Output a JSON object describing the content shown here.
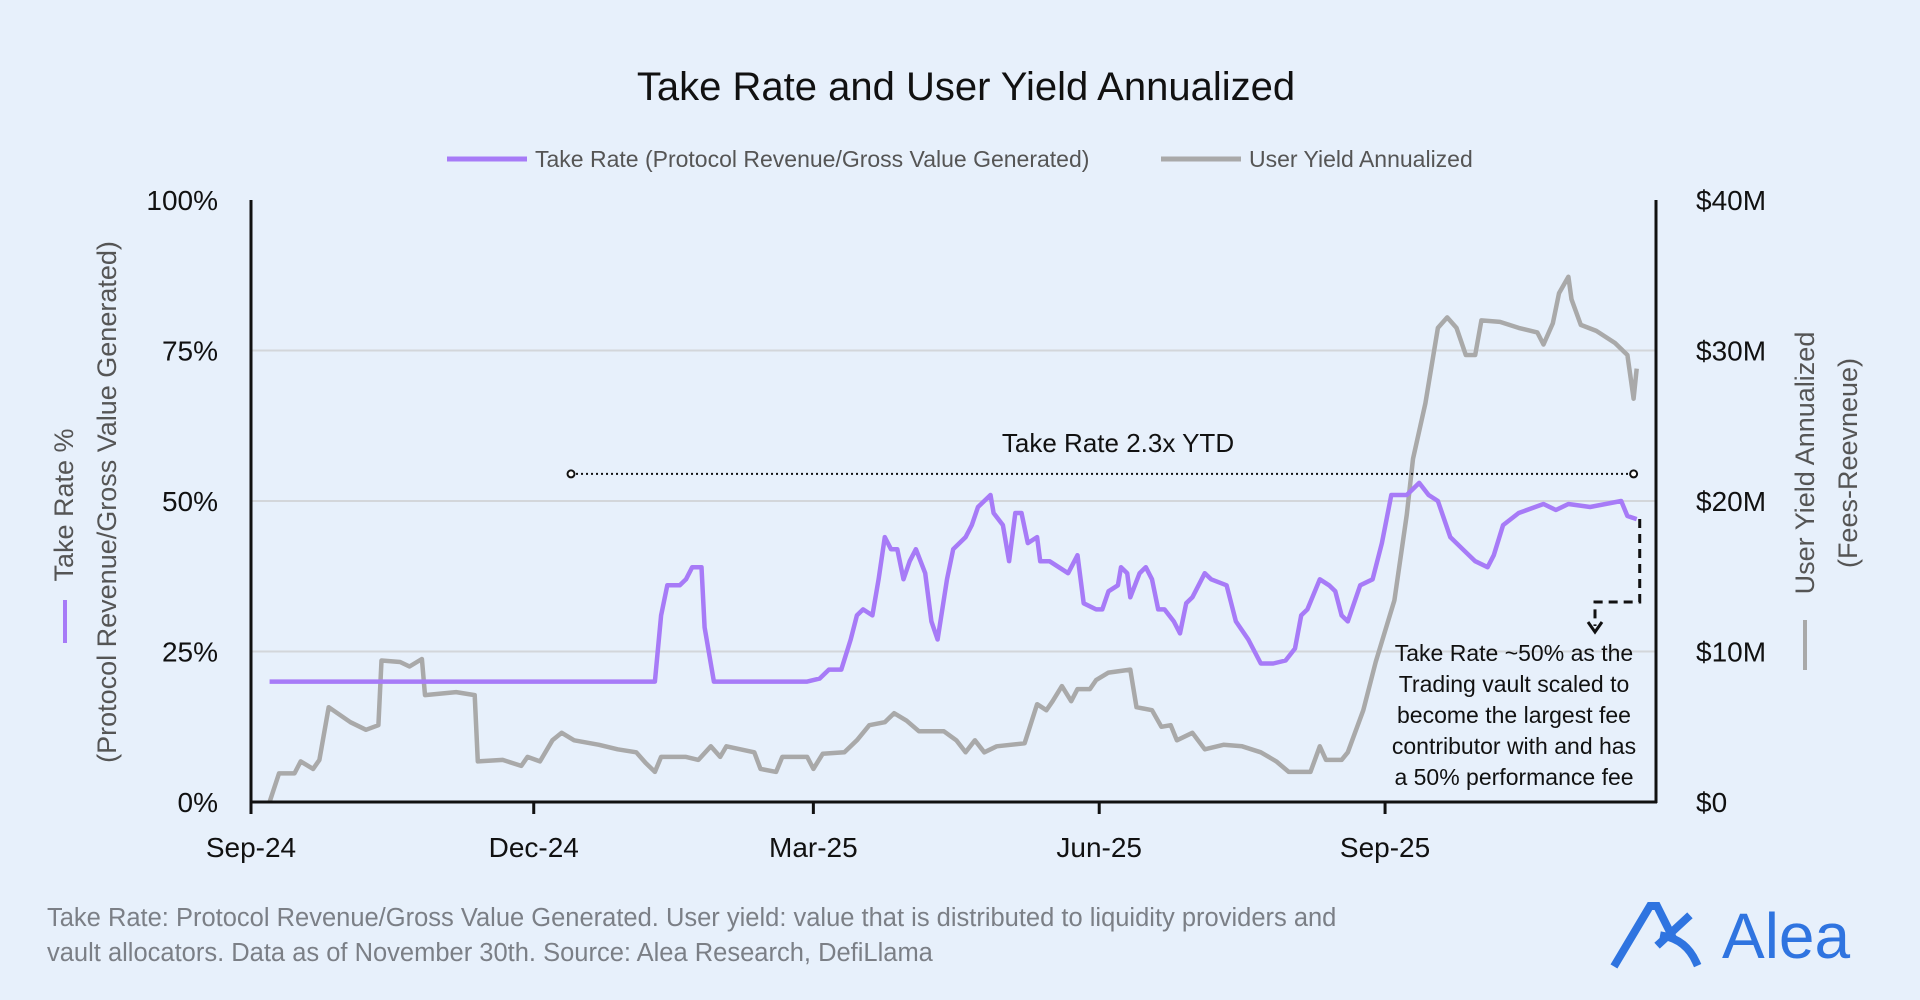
{
  "chart_data": {
    "type": "line",
    "title": "Take Rate and User Yield Annualized",
    "legend_placement": "top",
    "grid": true,
    "x_ticks": [
      {
        "date": "2024-09-01",
        "label": "Sep-24"
      },
      {
        "date": "2024-12-01",
        "label": "Dec-24"
      },
      {
        "date": "2025-03-01",
        "label": "Mar-25"
      },
      {
        "date": "2025-06-01",
        "label": "Jun-25"
      },
      {
        "date": "2025-09-01",
        "label": "Sep-25"
      }
    ],
    "x_range": [
      "2024-09-01",
      "2025-11-30"
    ],
    "y_left": {
      "label_line1": "Take Rate %",
      "label_line2": "(Protocol Revenue/Gross Value Generated)",
      "range": [
        0,
        100
      ],
      "ticks": [
        {
          "v": 0,
          "label": "0%"
        },
        {
          "v": 25,
          "label": "25%"
        },
        {
          "v": 50,
          "label": "50%"
        },
        {
          "v": 75,
          "label": "75%"
        },
        {
          "v": 100,
          "label": "100%"
        }
      ]
    },
    "y_right": {
      "label_line1": "User Yield Annualized",
      "label_line2": "(Fees-Reevneue)",
      "range": [
        0,
        40
      ],
      "ticks": [
        {
          "v": 0,
          "label": "$0"
        },
        {
          "v": 10,
          "label": "$10M"
        },
        {
          "v": 20,
          "label": "$20M"
        },
        {
          "v": 30,
          "label": "$30M"
        },
        {
          "v": 40,
          "label": "$40M"
        }
      ]
    },
    "series": [
      {
        "name": "Take Rate (Protocol Revenue/Gross Value Generated)",
        "axis": "left",
        "color": "#a77bf7",
        "points": [
          [
            "2024-09-07",
            20
          ],
          [
            "2025-01-09",
            20
          ],
          [
            "2025-01-11",
            31
          ],
          [
            "2025-01-13",
            36
          ],
          [
            "2025-01-17",
            36
          ],
          [
            "2025-01-19",
            37
          ],
          [
            "2025-01-21",
            39
          ],
          [
            "2025-01-24",
            39
          ],
          [
            "2025-01-25",
            29
          ],
          [
            "2025-01-28",
            20
          ],
          [
            "2025-02-27",
            20
          ],
          [
            "2025-03-03",
            20.5
          ],
          [
            "2025-03-06",
            22
          ],
          [
            "2025-03-10",
            22
          ],
          [
            "2025-03-13",
            27
          ],
          [
            "2025-03-15",
            31
          ],
          [
            "2025-03-17",
            32
          ],
          [
            "2025-03-20",
            31
          ],
          [
            "2025-03-22",
            37
          ],
          [
            "2025-03-24",
            44
          ],
          [
            "2025-03-26",
            42
          ],
          [
            "2025-03-28",
            42
          ],
          [
            "2025-03-30",
            37
          ],
          [
            "2025-04-01",
            40
          ],
          [
            "2025-04-03",
            42
          ],
          [
            "2025-04-06",
            38
          ],
          [
            "2025-04-08",
            30
          ],
          [
            "2025-04-10",
            27
          ],
          [
            "2025-04-13",
            37
          ],
          [
            "2025-04-15",
            42
          ],
          [
            "2025-04-19",
            44
          ],
          [
            "2025-04-21",
            46
          ],
          [
            "2025-04-23",
            49
          ],
          [
            "2025-04-27",
            51
          ],
          [
            "2025-04-28",
            48
          ],
          [
            "2025-05-01",
            46
          ],
          [
            "2025-05-03",
            40
          ],
          [
            "2025-05-05",
            48
          ],
          [
            "2025-05-07",
            48
          ],
          [
            "2025-05-09",
            43
          ],
          [
            "2025-05-12",
            44
          ],
          [
            "2025-05-13",
            40
          ],
          [
            "2025-05-16",
            40
          ],
          [
            "2025-05-19",
            39
          ],
          [
            "2025-05-22",
            38
          ],
          [
            "2025-05-25",
            41
          ],
          [
            "2025-05-27",
            33
          ],
          [
            "2025-05-31",
            32
          ],
          [
            "2025-06-02",
            32
          ],
          [
            "2025-06-04",
            35
          ],
          [
            "2025-06-07",
            36
          ],
          [
            "2025-06-08",
            39
          ],
          [
            "2025-06-10",
            38
          ],
          [
            "2025-06-11",
            34
          ],
          [
            "2025-06-14",
            38
          ],
          [
            "2025-06-16",
            39
          ],
          [
            "2025-06-18",
            37
          ],
          [
            "2025-06-20",
            32
          ],
          [
            "2025-06-22",
            32
          ],
          [
            "2025-06-25",
            30
          ],
          [
            "2025-06-27",
            28
          ],
          [
            "2025-06-29",
            33
          ],
          [
            "2025-07-01",
            34
          ],
          [
            "2025-07-05",
            38
          ],
          [
            "2025-07-07",
            37
          ],
          [
            "2025-07-12",
            36
          ],
          [
            "2025-07-15",
            30
          ],
          [
            "2025-07-19",
            27
          ],
          [
            "2025-07-23",
            23
          ],
          [
            "2025-07-27",
            23
          ],
          [
            "2025-07-31",
            23.5
          ],
          [
            "2025-08-03",
            25.5
          ],
          [
            "2025-08-05",
            31
          ],
          [
            "2025-08-07",
            32
          ],
          [
            "2025-08-11",
            37
          ],
          [
            "2025-08-14",
            36
          ],
          [
            "2025-08-16",
            35
          ],
          [
            "2025-08-18",
            31
          ],
          [
            "2025-08-20",
            30
          ],
          [
            "2025-08-24",
            36
          ],
          [
            "2025-08-28",
            37
          ],
          [
            "2025-08-29",
            39
          ],
          [
            "2025-08-31",
            43
          ],
          [
            "2025-09-03",
            51
          ],
          [
            "2025-09-08",
            51
          ],
          [
            "2025-09-12",
            53
          ],
          [
            "2025-09-15",
            51
          ],
          [
            "2025-09-18",
            50
          ],
          [
            "2025-09-22",
            44
          ],
          [
            "2025-09-26",
            42
          ],
          [
            "2025-09-30",
            40
          ],
          [
            "2025-10-04",
            39
          ],
          [
            "2025-10-06",
            41
          ],
          [
            "2025-10-09",
            46
          ],
          [
            "2025-10-14",
            48
          ],
          [
            "2025-10-22",
            49.5
          ],
          [
            "2025-10-26",
            48.5
          ],
          [
            "2025-10-30",
            49.5
          ],
          [
            "2025-11-06",
            49
          ],
          [
            "2025-11-16",
            50
          ],
          [
            "2025-11-18",
            47.5
          ],
          [
            "2025-11-21",
            47
          ]
        ]
      },
      {
        "name": "User Yield Annualized",
        "axis": "right",
        "color": "#a9a9a9",
        "points": [
          [
            "2024-09-07",
            0
          ],
          [
            "2024-09-10",
            1.9
          ],
          [
            "2024-09-15",
            1.9
          ],
          [
            "2024-09-17",
            2.7
          ],
          [
            "2024-09-21",
            2.2
          ],
          [
            "2024-09-23",
            2.8
          ],
          [
            "2024-09-26",
            6.3
          ],
          [
            "2024-10-03",
            5.3
          ],
          [
            "2024-10-08",
            4.8
          ],
          [
            "2024-10-12",
            5.1
          ],
          [
            "2024-10-13",
            9.4
          ],
          [
            "2024-10-19",
            9.3
          ],
          [
            "2024-10-22",
            9.0
          ],
          [
            "2024-10-26",
            9.5
          ],
          [
            "2024-10-27",
            7.1
          ],
          [
            "2024-11-06",
            7.3
          ],
          [
            "2024-11-12",
            7.1
          ],
          [
            "2024-11-13",
            2.7
          ],
          [
            "2024-11-21",
            2.8
          ],
          [
            "2024-11-27",
            2.4
          ],
          [
            "2024-11-29",
            3.0
          ],
          [
            "2024-12-03",
            2.7
          ],
          [
            "2024-12-07",
            4.1
          ],
          [
            "2024-12-10",
            4.6
          ],
          [
            "2024-12-14",
            4.1
          ],
          [
            "2024-12-22",
            3.8
          ],
          [
            "2024-12-28",
            3.5
          ],
          [
            "2025-01-03",
            3.3
          ],
          [
            "2025-01-06",
            2.6
          ],
          [
            "2025-01-09",
            2.0
          ],
          [
            "2025-01-11",
            3.0
          ],
          [
            "2025-01-19",
            3.0
          ],
          [
            "2025-01-23",
            2.8
          ],
          [
            "2025-01-27",
            3.7
          ],
          [
            "2025-01-30",
            3.0
          ],
          [
            "2025-02-01",
            3.7
          ],
          [
            "2025-02-10",
            3.3
          ],
          [
            "2025-02-12",
            2.2
          ],
          [
            "2025-02-17",
            2.0
          ],
          [
            "2025-02-19",
            3.0
          ],
          [
            "2025-02-27",
            3.0
          ],
          [
            "2025-03-01",
            2.2
          ],
          [
            "2025-03-04",
            3.2
          ],
          [
            "2025-03-11",
            3.3
          ],
          [
            "2025-03-15",
            4.1
          ],
          [
            "2025-03-19",
            5.1
          ],
          [
            "2025-03-24",
            5.3
          ],
          [
            "2025-03-27",
            5.9
          ],
          [
            "2025-03-31",
            5.4
          ],
          [
            "2025-04-04",
            4.7
          ],
          [
            "2025-04-12",
            4.7
          ],
          [
            "2025-04-16",
            4.1
          ],
          [
            "2025-04-19",
            3.3
          ],
          [
            "2025-04-22",
            4.1
          ],
          [
            "2025-04-25",
            3.3
          ],
          [
            "2025-04-29",
            3.7
          ],
          [
            "2025-05-08",
            3.9
          ],
          [
            "2025-05-12",
            6.5
          ],
          [
            "2025-05-15",
            6.1
          ],
          [
            "2025-05-17",
            6.7
          ],
          [
            "2025-05-20",
            7.7
          ],
          [
            "2025-05-23",
            6.7
          ],
          [
            "2025-05-25",
            7.5
          ],
          [
            "2025-05-29",
            7.5
          ],
          [
            "2025-05-31",
            8.1
          ],
          [
            "2025-06-04",
            8.6
          ],
          [
            "2025-06-11",
            8.8
          ],
          [
            "2025-06-13",
            6.3
          ],
          [
            "2025-06-18",
            6.1
          ],
          [
            "2025-06-21",
            5.0
          ],
          [
            "2025-06-24",
            5.1
          ],
          [
            "2025-06-26",
            4.1
          ],
          [
            "2025-07-01",
            4.6
          ],
          [
            "2025-07-05",
            3.5
          ],
          [
            "2025-07-11",
            3.8
          ],
          [
            "2025-07-17",
            3.7
          ],
          [
            "2025-07-23",
            3.3
          ],
          [
            "2025-07-28",
            2.7
          ],
          [
            "2025-08-01",
            2.0
          ],
          [
            "2025-08-08",
            2.0
          ],
          [
            "2025-08-11",
            3.7
          ],
          [
            "2025-08-13",
            2.8
          ],
          [
            "2025-08-18",
            2.8
          ],
          [
            "2025-08-20",
            3.3
          ],
          [
            "2025-08-25",
            6.1
          ],
          [
            "2025-08-29",
            9.3
          ],
          [
            "2025-09-04",
            13.4
          ],
          [
            "2025-09-08",
            19.1
          ],
          [
            "2025-09-10",
            22.8
          ],
          [
            "2025-09-14",
            26.5
          ],
          [
            "2025-09-18",
            31.5
          ],
          [
            "2025-09-21",
            32.2
          ],
          [
            "2025-09-24",
            31.5
          ],
          [
            "2025-09-27",
            29.7
          ],
          [
            "2025-09-30",
            29.7
          ],
          [
            "2025-10-02",
            32.0
          ],
          [
            "2025-10-08",
            31.9
          ],
          [
            "2025-10-14",
            31.5
          ],
          [
            "2025-10-20",
            31.2
          ],
          [
            "2025-10-22",
            30.4
          ],
          [
            "2025-10-25",
            31.8
          ],
          [
            "2025-10-27",
            33.8
          ],
          [
            "2025-10-30",
            34.9
          ],
          [
            "2025-10-31",
            33.4
          ],
          [
            "2025-11-03",
            31.7
          ],
          [
            "2025-11-08",
            31.3
          ],
          [
            "2025-11-14",
            30.5
          ],
          [
            "2025-11-18",
            29.7
          ],
          [
            "2025-11-20",
            26.8
          ],
          [
            "2025-11-21",
            28.8
          ]
        ]
      }
    ],
    "annotations": {
      "ytd": {
        "text": "Take Rate 2.3x YTD",
        "from_date": "2024-12-13",
        "to_date": "2025-11-20",
        "level": 54.5
      },
      "callout": {
        "lines": [
          "Take Rate ~50% as the",
          "Trading vault scaled to",
          "become the largest fee",
          "contributor with and has",
          "a 50% performance fee"
        ]
      }
    }
  },
  "footnote": {
    "line1": "Take Rate: Protocol Revenue/Gross Value Generated. User yield: value that is distributed to liquidity providers and",
    "line2": "vault allocators. Data as of November 30th. Source: Alea Research, DefiLlama"
  },
  "logo": {
    "text": "Alea",
    "color": "#2f74e0"
  },
  "colors": {
    "background": "#e7f0fb",
    "grid": "#d3d6da",
    "axis": "#111111"
  }
}
